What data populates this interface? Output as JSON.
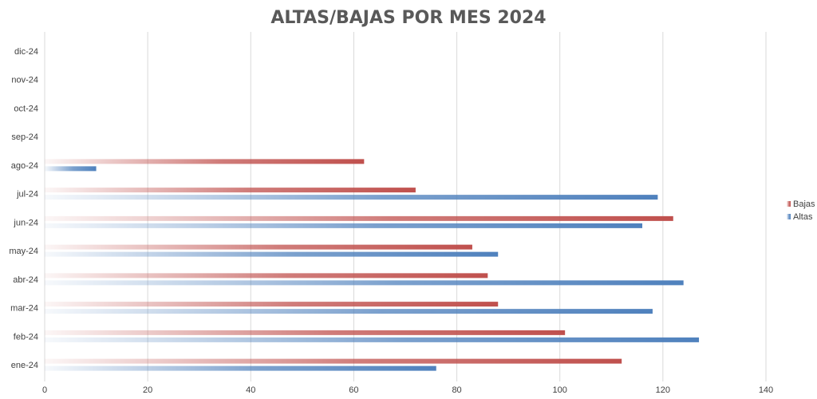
{
  "chart_data": {
    "type": "bar",
    "orientation": "horizontal",
    "title": "ALTAS/BAJAS POR MES 2024",
    "xlabel": "",
    "ylabel": "",
    "categories": [
      "ene-24",
      "feb-24",
      "mar-24",
      "abr-24",
      "may-24",
      "jun-24",
      "jul-24",
      "ago-24",
      "sep-24",
      "oct-24",
      "nov-24",
      "dic-24"
    ],
    "series": [
      {
        "name": "Bajas",
        "color": "#c0504d",
        "values": [
          112,
          101,
          88,
          86,
          83,
          122,
          72,
          62,
          null,
          null,
          null,
          null
        ]
      },
      {
        "name": "Altas",
        "color": "#4f81bd",
        "values": [
          76,
          127,
          118,
          124,
          88,
          116,
          119,
          10,
          null,
          null,
          null,
          null
        ]
      }
    ],
    "xlim": [
      0,
      140
    ],
    "xticks": [
      0,
      20,
      40,
      60,
      80,
      100,
      120,
      140
    ],
    "grid": "vertical",
    "legend": {
      "placement": "right",
      "order": [
        "Bajas",
        "Altas"
      ]
    },
    "bar_fill": "gradient-fade-from-left"
  }
}
